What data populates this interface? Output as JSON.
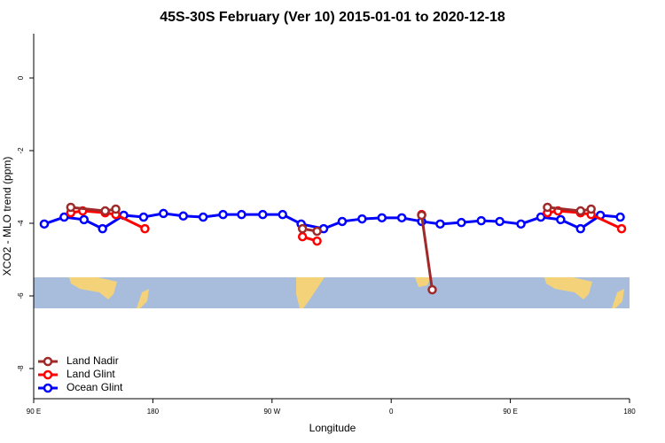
{
  "chart_data": {
    "type": "line",
    "title": "45S-30S February (Ver 10)   2015-01-01 to 2020-12-18",
    "x_label": "Longitude",
    "y_label": "XCO2 - MLO trend (ppm)",
    "xlim": [
      90,
      540
    ],
    "xticks": [
      {
        "value": 90,
        "label": "90 E"
      },
      180,
      {
        "value": 270,
        "label": "90 W"
      },
      {
        "value": 360,
        "label": "0"
      },
      {
        "value": 450,
        "label": "90 E"
      },
      {
        "value": 540,
        "label": "180"
      }
    ],
    "ylim": [
      -8.83,
      1.22
    ],
    "yticks": [
      0,
      -2,
      -4,
      -6,
      -8
    ],
    "legend": "bottom-left",
    "series": [
      {
        "name": "Land Nadir",
        "color": "#9e2a2a",
        "x": [
          118,
          144,
          152,
          220,
          293,
          304,
          340,
          383,
          391,
          440,
          478,
          503,
          511
        ],
        "values": [
          -3.56,
          -3.66,
          -3.61,
          null,
          -4.15,
          -4.22,
          null,
          -3.78,
          -5.83,
          null,
          -3.56,
          -3.66,
          -3.61
        ]
      },
      {
        "name": "Land Glint",
        "color": "#ff0000",
        "x": [
          118,
          127,
          144,
          152,
          174,
          230,
          293,
          304,
          340,
          383,
          430,
          478,
          486,
          503,
          511,
          534
        ],
        "values": [
          -3.71,
          -3.66,
          -3.71,
          -3.76,
          -4.15,
          null,
          -4.37,
          -4.49,
          null,
          -3.76,
          null,
          -3.71,
          -3.66,
          -3.71,
          -3.76,
          -4.15
        ]
      },
      {
        "name": "Ocean Glint",
        "color": "#0000ff",
        "x": [
          98,
          113,
          128,
          142,
          158,
          173,
          188,
          203,
          218,
          233,
          247,
          263,
          278,
          292,
          309,
          323,
          338,
          353,
          368,
          383,
          397,
          413,
          428,
          442,
          458,
          473,
          488,
          503,
          518,
          533
        ],
        "values": [
          -4.02,
          -3.83,
          -3.9,
          -4.15,
          -3.78,
          -3.83,
          -3.73,
          -3.8,
          -3.83,
          -3.76,
          -3.76,
          -3.76,
          -3.76,
          -4.02,
          -4.15,
          -3.95,
          -3.88,
          -3.85,
          -3.85,
          -3.95,
          -4.02,
          -3.98,
          -3.93,
          -3.95,
          -4.02,
          -3.83,
          -3.9,
          -4.15,
          -3.78,
          -3.83
        ]
      }
    ]
  }
}
